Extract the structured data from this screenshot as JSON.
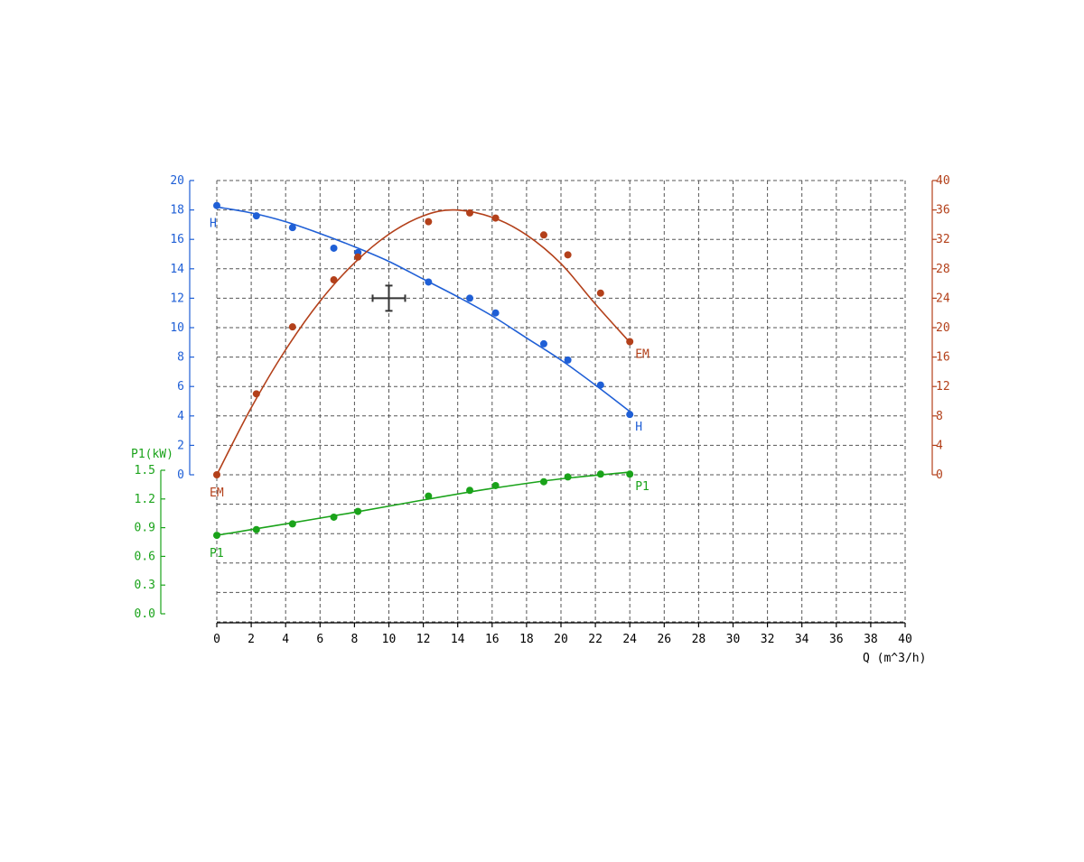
{
  "chart_data": {
    "type": "line",
    "title": "",
    "xlabel": "Q (m^3/h)",
    "xlim": [
      0,
      40
    ],
    "x_ticks": [
      "0",
      "2",
      "4",
      "6",
      "8",
      "10",
      "12",
      "14",
      "16",
      "18",
      "20",
      "22",
      "24",
      "26",
      "28",
      "30",
      "32",
      "34",
      "36",
      "38",
      "40"
    ],
    "grid": true,
    "axes": {
      "H": {
        "ylim": [
          0,
          20
        ],
        "ticks": [
          "0",
          "2",
          "4",
          "6",
          "8",
          "10",
          "12",
          "14",
          "16",
          "18",
          "20"
        ],
        "color": "#1f5fd6",
        "side": "left"
      },
      "EM": {
        "ylim": [
          0,
          40
        ],
        "ticks": [
          "0",
          "4",
          "8",
          "12",
          "16",
          "20",
          "24",
          "28",
          "32",
          "36",
          "40"
        ],
        "color": "#b3401a",
        "side": "right"
      },
      "P1": {
        "label": "P1(kW)",
        "ylim": [
          0.0,
          1.5
        ],
        "ticks": [
          "0.0",
          "0.3",
          "0.6",
          "0.9",
          "1.2",
          "1.5"
        ],
        "color": "#1aa31a",
        "side": "left-lower"
      }
    },
    "series": [
      {
        "name": "H",
        "axis": "H",
        "color": "#1f5fd6",
        "points": [
          [
            0,
            18.3
          ],
          [
            2.3,
            17.6
          ],
          [
            4.4,
            16.8
          ],
          [
            6.8,
            15.4
          ],
          [
            8.2,
            15.1
          ],
          [
            12.3,
            13.1
          ],
          [
            14.7,
            12.0
          ],
          [
            16.2,
            11.0
          ],
          [
            19.0,
            8.9
          ],
          [
            20.4,
            7.8
          ],
          [
            22.3,
            6.1
          ],
          [
            24.0,
            4.1
          ]
        ],
        "curve": [
          [
            0,
            18.2
          ],
          [
            2,
            17.8
          ],
          [
            4,
            17.2
          ],
          [
            6,
            16.4
          ],
          [
            8,
            15.5
          ],
          [
            10,
            14.5
          ],
          [
            12,
            13.3
          ],
          [
            14,
            12.1
          ],
          [
            16,
            10.8
          ],
          [
            18,
            9.3
          ],
          [
            20,
            7.8
          ],
          [
            22,
            6.1
          ],
          [
            24,
            4.3
          ]
        ],
        "end_labels": [
          "H",
          "H"
        ]
      },
      {
        "name": "EM",
        "axis": "EM",
        "color": "#b3401a",
        "points": [
          [
            0,
            0
          ],
          [
            2.3,
            11.0
          ],
          [
            4.4,
            20.1
          ],
          [
            6.8,
            26.5
          ],
          [
            8.2,
            29.6
          ],
          [
            12.3,
            34.4
          ],
          [
            14.7,
            35.6
          ],
          [
            16.2,
            34.9
          ],
          [
            19.0,
            32.6
          ],
          [
            20.4,
            29.9
          ],
          [
            22.3,
            24.7
          ],
          [
            24.0,
            18.1
          ]
        ],
        "curve": [
          [
            0,
            0
          ],
          [
            2,
            9.1
          ],
          [
            4,
            17.0
          ],
          [
            6,
            23.6
          ],
          [
            8,
            28.8
          ],
          [
            10,
            32.7
          ],
          [
            12,
            35.2
          ],
          [
            13.8,
            36.0
          ],
          [
            16,
            35.0
          ],
          [
            18,
            32.6
          ],
          [
            20,
            28.7
          ],
          [
            22,
            23.2
          ],
          [
            24,
            18.0
          ]
        ],
        "end_labels": [
          "EM",
          "EM"
        ]
      },
      {
        "name": "P1",
        "axis": "P1",
        "color": "#1aa31a",
        "points": [
          [
            0,
            0.82
          ],
          [
            2.3,
            0.88
          ],
          [
            4.4,
            0.94
          ],
          [
            6.8,
            1.01
          ],
          [
            8.2,
            1.07
          ],
          [
            12.3,
            1.23
          ],
          [
            14.7,
            1.29
          ],
          [
            16.2,
            1.34
          ],
          [
            19.0,
            1.38
          ],
          [
            20.4,
            1.43
          ],
          [
            22.3,
            1.46
          ],
          [
            24.0,
            1.46
          ]
        ],
        "curve": [
          [
            0,
            0.82
          ],
          [
            4,
            0.94
          ],
          [
            8,
            1.06
          ],
          [
            12,
            1.19
          ],
          [
            16,
            1.31
          ],
          [
            20,
            1.41
          ],
          [
            24,
            1.48
          ]
        ],
        "end_labels": [
          "P1",
          "P1"
        ]
      }
    ],
    "cursor": {
      "x": 10,
      "H": 12
    }
  }
}
